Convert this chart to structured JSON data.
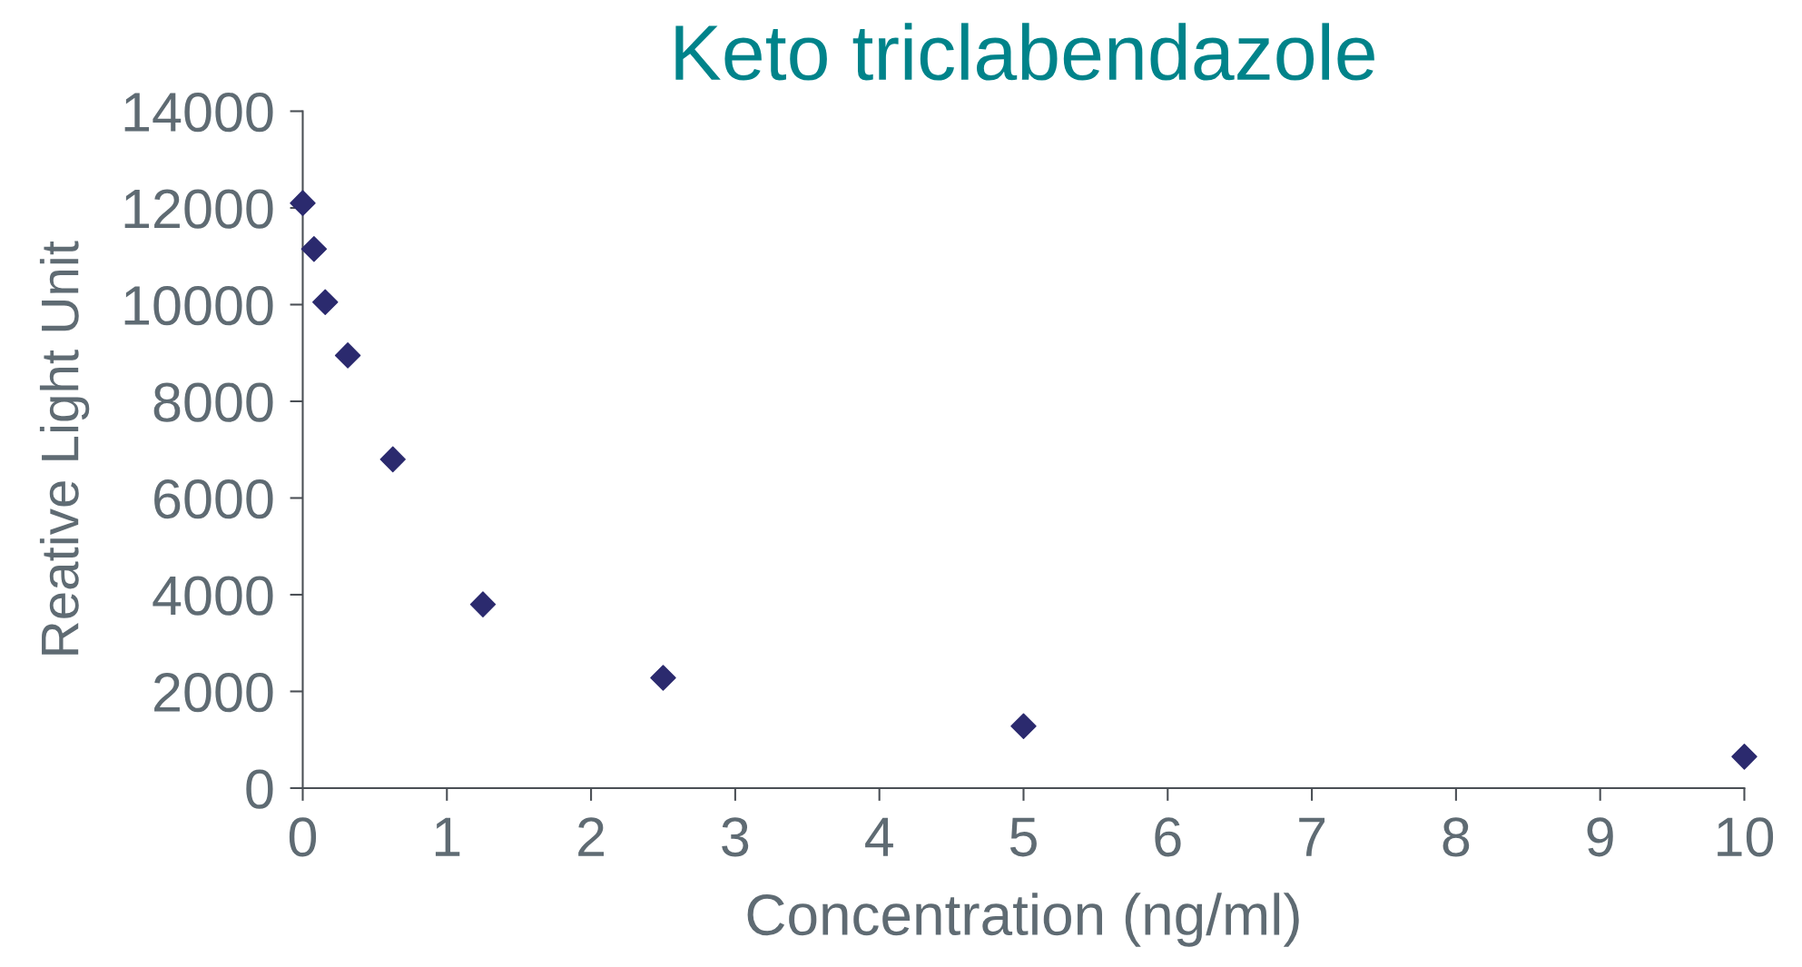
{
  "chart_data": {
    "type": "scatter",
    "title": "Keto triclabendazole",
    "xlabel": "Concentration (ng/ml)",
    "ylabel": "Reative Light Unit",
    "series": [
      {
        "color": "#2b2a6e",
        "x": [
          0,
          0.078,
          0.156,
          0.3125,
          0.625,
          1.25,
          2.5,
          5,
          10
        ],
        "values": [
          12100,
          11150,
          10050,
          8950,
          6800,
          3800,
          2280,
          1280,
          650
        ]
      }
    ],
    "xlim": [
      0,
      10
    ],
    "xticks": [
      0,
      1,
      2,
      3,
      4,
      5,
      6,
      7,
      8,
      9,
      10
    ],
    "ylim": [
      0,
      14000
    ],
    "yticks": [
      0,
      2000,
      4000,
      6000,
      8000,
      10000,
      12000,
      14000
    ],
    "marker": "diamond",
    "grid": false,
    "legend": false
  }
}
